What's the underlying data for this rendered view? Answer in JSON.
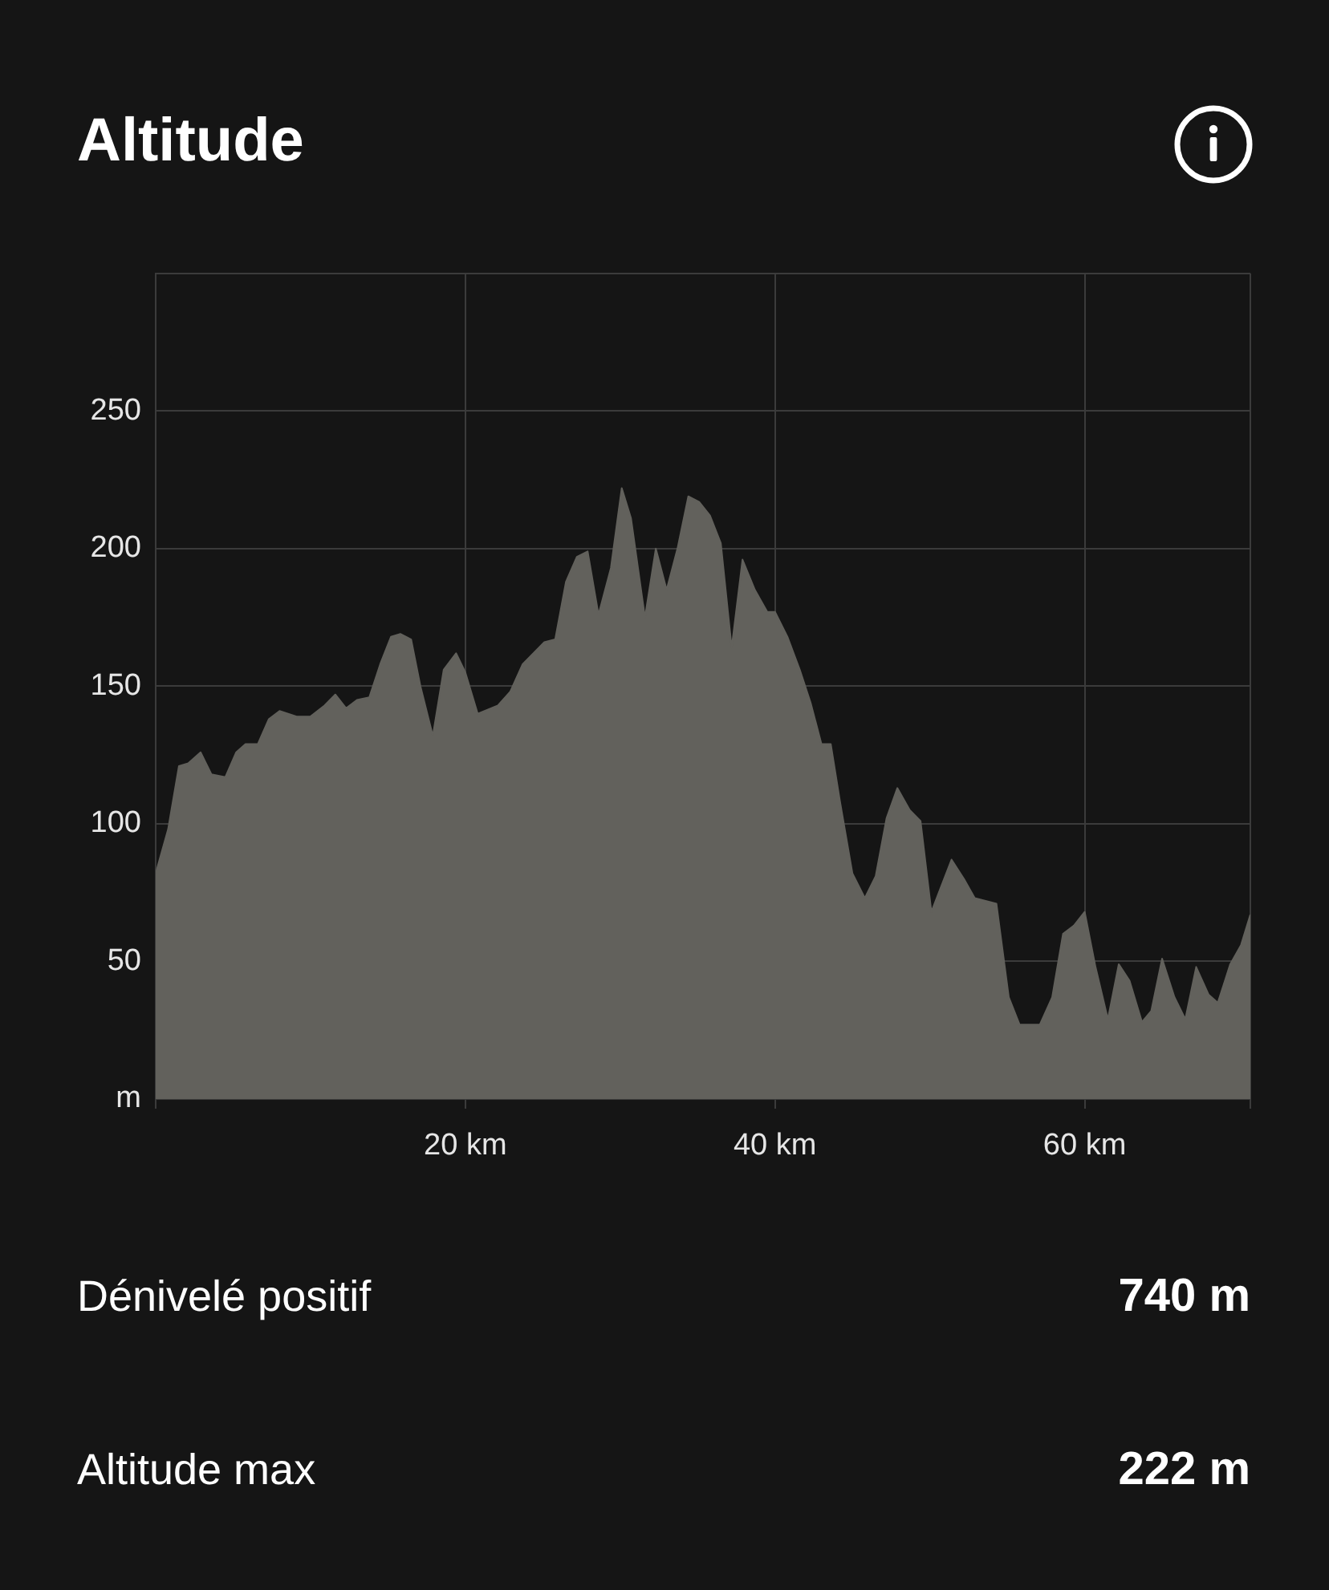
{
  "chart_data": {
    "type": "area",
    "title": "Altitude",
    "annotations": [
      "Dénivelé positif",
      "740 m",
      "Altitude max",
      "222 m"
    ],
    "x": [
      0,
      0.8,
      1.5,
      2.1,
      2.9,
      3.6,
      4.5,
      5.2,
      5.8,
      6.6,
      7.3,
      8.0,
      9.1,
      10.0,
      10.9,
      11.6,
      12.3,
      13.0,
      13.8,
      14.5,
      15.2,
      15.8,
      16.5,
      17.1,
      17.9,
      18.6,
      19.4,
      20.0,
      20.8,
      22.1,
      22.9,
      23.7,
      24.4,
      25.1,
      25.8,
      26.5,
      27.2,
      27.9,
      28.6,
      29.4,
      30.1,
      30.7,
      31.6,
      32.3,
      33.0,
      33.7,
      34.4,
      35.1,
      35.8,
      36.5,
      37.2,
      37.9,
      38.7,
      39.5,
      40.0,
      40.8,
      41.6,
      42.3,
      43.0,
      43.6,
      44.2,
      45.0,
      45.8,
      46.5,
      47.2,
      47.9,
      48.7,
      49.4,
      50.1,
      51.4,
      52.2,
      52.9,
      54.3,
      55.1,
      55.8,
      57.1,
      57.9,
      58.6,
      59.3,
      60.0,
      60.7,
      61.5,
      62.2,
      62.9,
      63.7,
      64.3,
      65.0,
      65.8,
      66.5,
      67.2,
      68.0,
      68.6,
      69.4,
      70.1,
      70.7
    ],
    "values": [
      82,
      98,
      121,
      122,
      126,
      118,
      117,
      126,
      129,
      129,
      138,
      141,
      139,
      139,
      143,
      147,
      142,
      145,
      146,
      158,
      168,
      169,
      167,
      150,
      132,
      156,
      162,
      155,
      140,
      143,
      148,
      158,
      162,
      166,
      167,
      188,
      197,
      199,
      176,
      193,
      222,
      211,
      175,
      200,
      185,
      200,
      219,
      217,
      212,
      202,
      164,
      196,
      185,
      177,
      177,
      168,
      156,
      144,
      129,
      129,
      108,
      82,
      73,
      81,
      102,
      113,
      105,
      101,
      68,
      87,
      80,
      73,
      71,
      37,
      27,
      27,
      37,
      60,
      63,
      68,
      48,
      29,
      49,
      43,
      28,
      32,
      51,
      37,
      29,
      48,
      38,
      35,
      49,
      56,
      67
    ],
    "color": "#62615c",
    "xlim": [
      0,
      70.7
    ],
    "xticks": [
      {
        "value": 0,
        "label": null
      },
      {
        "value": 20,
        "label": "20 km"
      },
      {
        "value": 40,
        "label": "40 km"
      },
      {
        "value": 60,
        "label": "60 km"
      },
      {
        "value": 70.7,
        "label": null
      }
    ],
    "ylim": [
      0,
      300
    ],
    "yticks": [
      {
        "value": 0,
        "label": "m"
      },
      50,
      100,
      150,
      200,
      250,
      {
        "value": 300,
        "label": null
      }
    ],
    "grid": true
  }
}
